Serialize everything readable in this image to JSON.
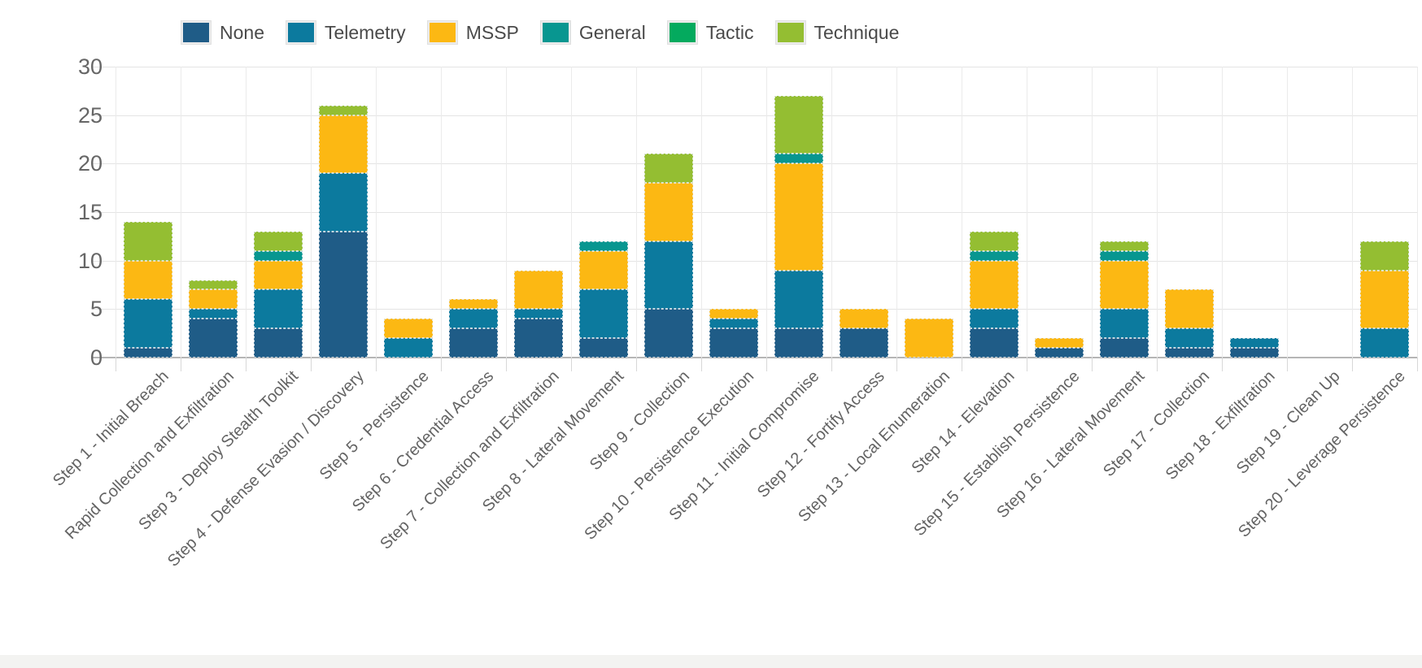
{
  "chart_data": {
    "type": "bar",
    "stacked": true,
    "title": "",
    "xlabel": "",
    "ylabel": "",
    "ylim": [
      0,
      30
    ],
    "yticks": [
      0,
      5,
      10,
      15,
      20,
      25,
      30
    ],
    "grid": true,
    "legend_position": "top",
    "categories": [
      "Step 1 - Initial Breach",
      "Rapid Collection and Exfiltration",
      "Step 3 - Deploy Stealth Toolkit",
      "Step 4 - Defense Evasion / Discovery",
      "Step 5 - Persistence",
      "Step 6 - Credential Access",
      "Step 7 - Collection and Exfiltration",
      "Step 8 - Lateral Movement",
      "Step 9 - Collection",
      "Step 10 - Persistence Execution",
      "Step 11 - Initial Compromise",
      "Step 12 - Fortify Access",
      "Step 13 - Local Enumeration",
      "Step 14 - Elevation",
      "Step 15 - Establish Persistence",
      "Step 16 - Lateral Movement",
      "Step 17 - Collection",
      "Step 18 - Exfiltration",
      "Step 19 - Clean Up",
      "Step 20 - Leverage Persistence"
    ],
    "series": [
      {
        "name": "None",
        "color": "#1f5c87",
        "values": [
          1,
          4,
          3,
          13,
          0,
          3,
          4,
          2,
          5,
          3,
          3,
          3,
          0,
          3,
          1,
          2,
          1,
          1,
          0,
          0
        ]
      },
      {
        "name": "Telemetry",
        "color": "#0c7a9e",
        "values": [
          5,
          1,
          4,
          6,
          2,
          2,
          1,
          5,
          7,
          1,
          6,
          0,
          0,
          2,
          0,
          3,
          2,
          1,
          0,
          3
        ]
      },
      {
        "name": "MSSP",
        "color": "#fcb813",
        "values": [
          4,
          2,
          3,
          6,
          2,
          1,
          4,
          4,
          6,
          1,
          11,
          2,
          4,
          5,
          1,
          5,
          4,
          0,
          0,
          6
        ]
      },
      {
        "name": "General",
        "color": "#089690",
        "values": [
          0,
          0,
          1,
          0,
          0,
          0,
          0,
          1,
          0,
          0,
          1,
          0,
          0,
          1,
          0,
          1,
          0,
          0,
          0,
          0
        ]
      },
      {
        "name": "Tactic",
        "color": "#04aa5e",
        "values": [
          0,
          0,
          0,
          0,
          0,
          0,
          0,
          0,
          0,
          0,
          0,
          0,
          0,
          0,
          0,
          0,
          0,
          0,
          0,
          0
        ]
      },
      {
        "name": "Technique",
        "color": "#94be32",
        "values": [
          4,
          1,
          2,
          1,
          0,
          0,
          0,
          0,
          3,
          0,
          6,
          0,
          0,
          2,
          0,
          1,
          0,
          0,
          0,
          3
        ]
      }
    ],
    "totals": [
      14,
      8,
      13,
      26,
      4,
      6,
      9,
      12,
      21,
      5,
      27,
      5,
      4,
      13,
      2,
      12,
      7,
      2,
      0,
      12
    ]
  }
}
